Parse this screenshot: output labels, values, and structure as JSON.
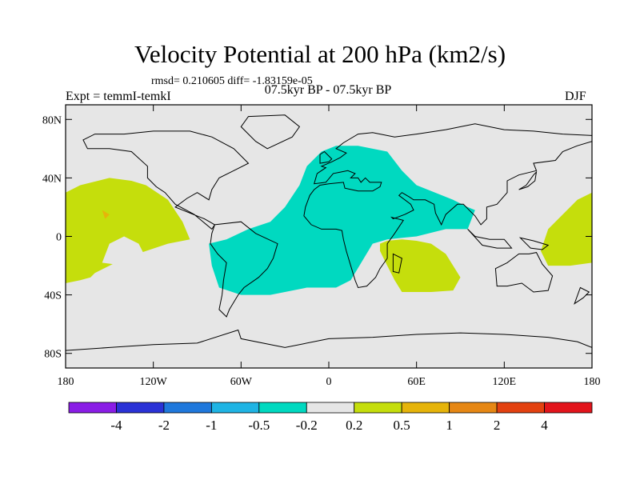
{
  "chart_data": {
    "type": "heatmap",
    "title": "Velocity Potential at 200 hPa (km2/s)",
    "stats_line": "rmsd= 0.210605 diff= -1.83159e-05",
    "period": "07.5kyr BP - 07.5kyr BP",
    "left_label": "Expt = temmI-temkI",
    "right_label": "DJF",
    "x_ticks": [
      "180",
      "120W",
      "60W",
      "0",
      "60E",
      "120E",
      "180"
    ],
    "y_ticks": [
      "80N",
      "40N",
      "0",
      "40S",
      "80S"
    ],
    "xlim": [
      -180,
      180
    ],
    "ylim": [
      -90,
      90
    ],
    "colorbar": {
      "colors": [
        "#8a1de6",
        "#2a32d6",
        "#1f78dc",
        "#1fb4e4",
        "#00d9c0",
        "#e6e6e6",
        "#c5de0c",
        "#e6b40a",
        "#e68714",
        "#e34110",
        "#e2141b"
      ],
      "labels": [
        "-4",
        "-2",
        "-1",
        "-0.5",
        "-0.2",
        "0.2",
        "0.5",
        "1",
        "2",
        "4"
      ]
    },
    "regions": [
      {
        "name": "positive-pacific-east",
        "level": "0.2..0.5",
        "color": "#c5de0c",
        "points": [
          [
            -180,
            30
          ],
          [
            -170,
            35
          ],
          [
            -150,
            40
          ],
          [
            -135,
            38
          ],
          [
            -125,
            35
          ],
          [
            -110,
            25
          ],
          [
            -100,
            10
          ],
          [
            -95,
            -2
          ],
          [
            -110,
            -5
          ],
          [
            -125,
            -10
          ],
          [
            -140,
            -15
          ],
          [
            -150,
            -20
          ],
          [
            -160,
            -25
          ],
          [
            -163,
            -28
          ],
          [
            -170,
            -30
          ],
          [
            -180,
            -32
          ]
        ]
      },
      {
        "name": "positive-pacific-west",
        "level": "0.2..0.5",
        "color": "#c5de0c",
        "points": [
          [
            180,
            30
          ],
          [
            170,
            25
          ],
          [
            160,
            15
          ],
          [
            150,
            5
          ],
          [
            145,
            -10
          ],
          [
            150,
            -20
          ],
          [
            165,
            -20
          ],
          [
            180,
            -18
          ]
        ]
      },
      {
        "name": "positive-indian-ocean",
        "level": "0.2..0.5",
        "color": "#c5de0c",
        "points": [
          [
            35,
            -5
          ],
          [
            40,
            -3
          ],
          [
            50,
            -2
          ],
          [
            60,
            -3
          ],
          [
            70,
            -5
          ],
          [
            80,
            -12
          ],
          [
            85,
            -20
          ],
          [
            90,
            -28
          ],
          [
            85,
            -37
          ],
          [
            70,
            -38
          ],
          [
            50,
            -38
          ],
          [
            45,
            -30
          ],
          [
            40,
            -20
          ],
          [
            35,
            -10
          ]
        ]
      },
      {
        "name": "negative-atlantic-eurasia",
        "level": "-0.5..-0.2",
        "color": "#00d9c0",
        "points": [
          [
            -60,
            -40
          ],
          [
            -75,
            -35
          ],
          [
            -80,
            -20
          ],
          [
            -82,
            -5
          ],
          [
            -70,
            -2
          ],
          [
            -55,
            5
          ],
          [
            -40,
            10
          ],
          [
            -30,
            20
          ],
          [
            -20,
            35
          ],
          [
            -15,
            48
          ],
          [
            -5,
            58
          ],
          [
            5,
            62
          ],
          [
            20,
            62
          ],
          [
            40,
            58
          ],
          [
            50,
            45
          ],
          [
            60,
            35
          ],
          [
            85,
            25
          ],
          [
            95,
            20
          ],
          [
            100,
            18
          ],
          [
            95,
            5
          ],
          [
            80,
            5
          ],
          [
            60,
            0
          ],
          [
            40,
            -2
          ],
          [
            30,
            -5
          ],
          [
            15,
            -30
          ],
          [
            5,
            -35
          ],
          [
            -15,
            -35
          ],
          [
            -40,
            -40
          ]
        ]
      }
    ]
  }
}
